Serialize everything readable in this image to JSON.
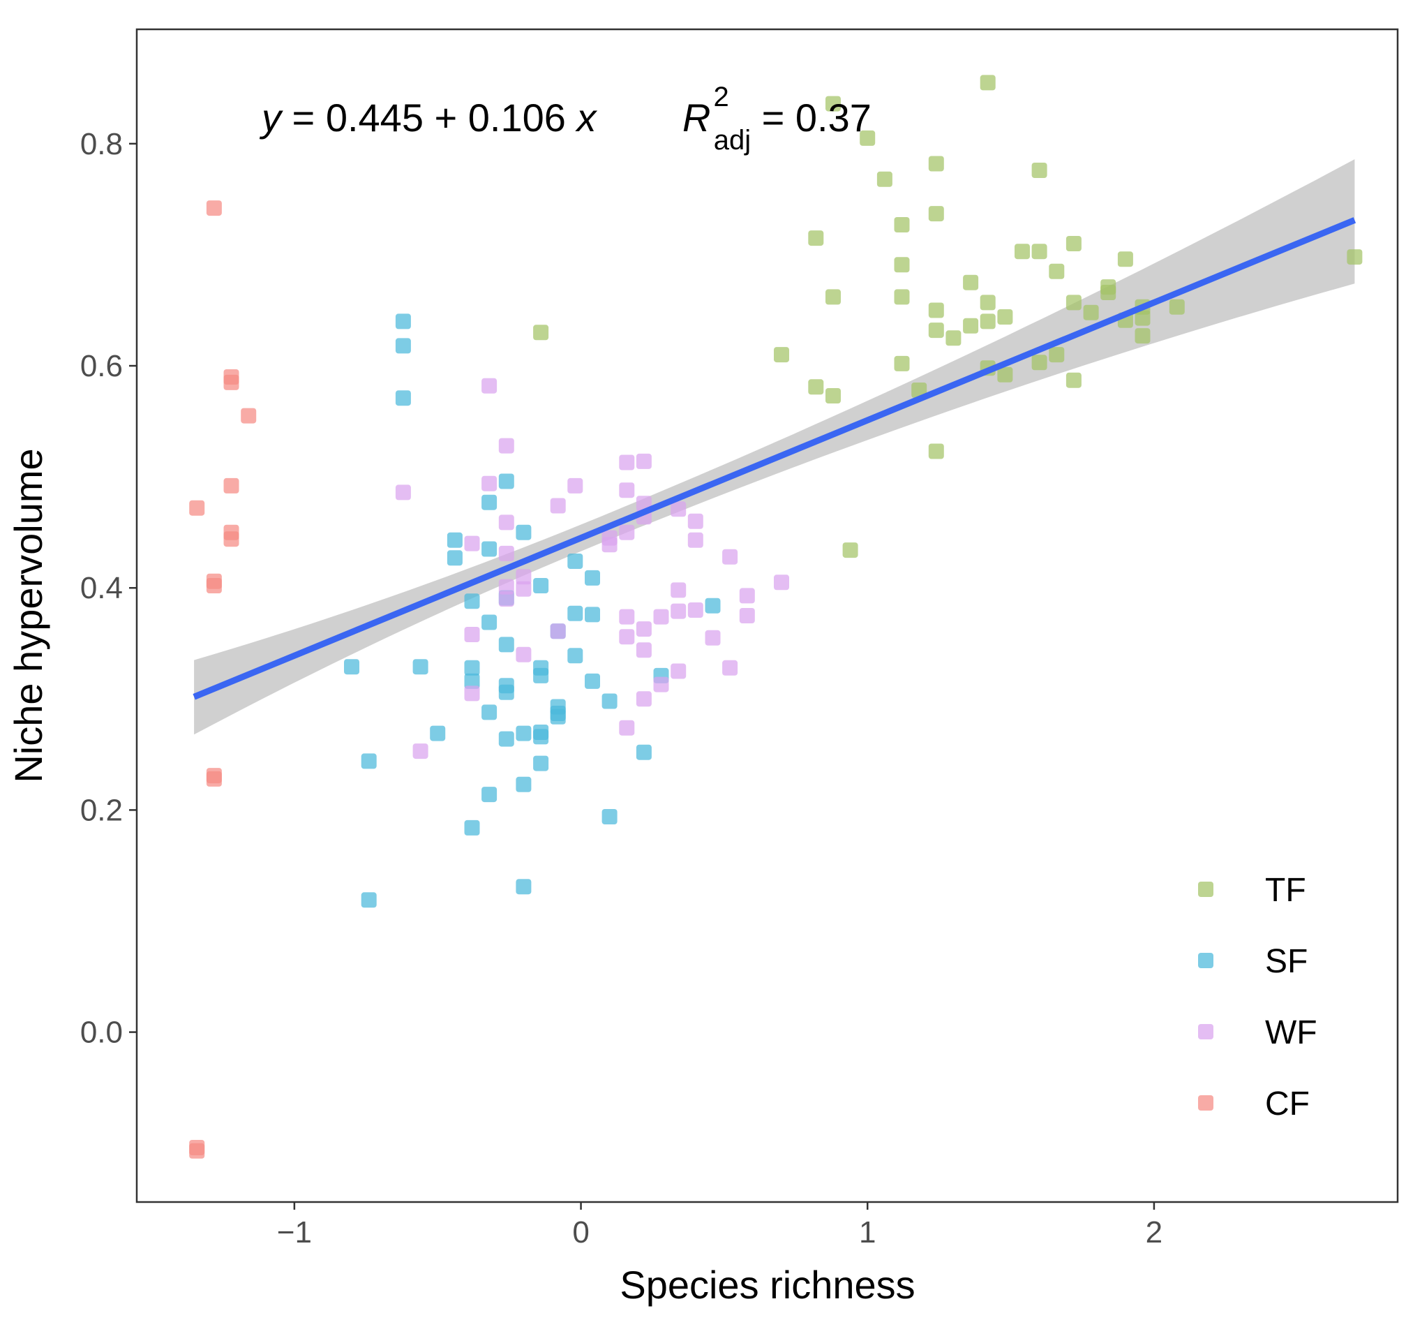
{
  "chart_data": {
    "type": "scatter",
    "title": "",
    "xlabel": "Species richness",
    "ylabel": "Niche hypervolume",
    "xlim": [
      -1.55,
      2.85
    ],
    "ylim": [
      -0.153,
      0.903
    ],
    "x_ticks": [
      -1,
      0,
      1,
      2
    ],
    "x_tick_labels": [
      "−1",
      "0",
      "1",
      "2"
    ],
    "y_ticks": [
      0.0,
      0.2,
      0.4,
      0.6,
      0.8
    ],
    "y_tick_labels": [
      "0.0",
      "0.2",
      "0.4",
      "0.6",
      "0.8"
    ],
    "grid": false,
    "legend_position": "bottom-right",
    "annotation": {
      "y": "y",
      "eq_body": " = 0.445 + 0.106 ",
      "x": "x",
      "r": "R",
      "r_sup": "2",
      "r_sub": "adj",
      "r_value": " = 0.37"
    },
    "regression": {
      "intercept": 0.445,
      "slope": 0.106,
      "r2_adj": 0.37,
      "x_range": [
        -1.35,
        2.7
      ],
      "ci_lower_ends": [
        0.268,
        0.674
      ],
      "ci_upper_ends": [
        0.335,
        0.786
      ],
      "ci_min_half_width": 0.012,
      "ci_center_x": 0.05,
      "line_color": "#3a66f2",
      "ci_color": "#c8c8c8"
    },
    "series": [
      {
        "name": "TF",
        "color": "#a3c466",
        "points": [
          [
            0.88,
            0.836
          ],
          [
            1.42,
            0.855
          ],
          [
            1.0,
            0.805
          ],
          [
            1.24,
            0.782
          ],
          [
            1.06,
            0.768
          ],
          [
            1.6,
            0.776
          ],
          [
            1.24,
            0.737
          ],
          [
            1.12,
            0.727
          ],
          [
            0.82,
            0.715
          ],
          [
            1.72,
            0.71
          ],
          [
            1.54,
            0.703
          ],
          [
            1.6,
            0.703
          ],
          [
            1.12,
            0.691
          ],
          [
            1.66,
            0.685
          ],
          [
            1.9,
            0.696
          ],
          [
            2.7,
            0.698
          ],
          [
            0.88,
            0.662
          ],
          [
            1.12,
            0.662
          ],
          [
            1.36,
            0.675
          ],
          [
            1.42,
            0.657
          ],
          [
            1.84,
            0.671
          ],
          [
            1.84,
            0.666
          ],
          [
            1.72,
            0.657
          ],
          [
            1.24,
            0.65
          ],
          [
            1.78,
            0.648
          ],
          [
            1.96,
            0.653
          ],
          [
            2.08,
            0.653
          ],
          [
            1.96,
            0.643
          ],
          [
            1.48,
            0.644
          ],
          [
            1.42,
            0.64
          ],
          [
            1.36,
            0.636
          ],
          [
            1.9,
            0.641
          ],
          [
            1.24,
            0.632
          ],
          [
            1.3,
            0.625
          ],
          [
            1.96,
            0.627
          ],
          [
            -0.14,
            0.63
          ],
          [
            0.7,
            0.61
          ],
          [
            1.66,
            0.61
          ],
          [
            1.12,
            0.602
          ],
          [
            1.6,
            0.603
          ],
          [
            1.42,
            0.598
          ],
          [
            1.48,
            0.592
          ],
          [
            1.72,
            0.587
          ],
          [
            0.82,
            0.581
          ],
          [
            1.18,
            0.578
          ],
          [
            0.88,
            0.573
          ],
          [
            1.24,
            0.523
          ],
          [
            0.94,
            0.434
          ]
        ]
      },
      {
        "name": "SF",
        "color": "#4bb9db",
        "points": [
          [
            -0.62,
            0.64
          ],
          [
            -0.62,
            0.618
          ],
          [
            -0.62,
            0.571
          ],
          [
            -0.26,
            0.496
          ],
          [
            -0.32,
            0.477
          ],
          [
            -0.2,
            0.45
          ],
          [
            -0.44,
            0.443
          ],
          [
            -0.32,
            0.435
          ],
          [
            -0.44,
            0.427
          ],
          [
            -0.02,
            0.424
          ],
          [
            0.04,
            0.409
          ],
          [
            -0.14,
            0.402
          ],
          [
            -0.26,
            0.391
          ],
          [
            -0.38,
            0.388
          ],
          [
            0.46,
            0.384
          ],
          [
            -0.02,
            0.377
          ],
          [
            0.04,
            0.376
          ],
          [
            -0.32,
            0.369
          ],
          [
            -0.08,
            0.361
          ],
          [
            -0.26,
            0.349
          ],
          [
            -0.02,
            0.339
          ],
          [
            -0.8,
            0.329
          ],
          [
            -0.56,
            0.329
          ],
          [
            -0.38,
            0.328
          ],
          [
            -0.14,
            0.328
          ],
          [
            -0.14,
            0.321
          ],
          [
            0.28,
            0.321
          ],
          [
            -0.38,
            0.316
          ],
          [
            0.04,
            0.316
          ],
          [
            -0.26,
            0.312
          ],
          [
            -0.26,
            0.306
          ],
          [
            0.1,
            0.298
          ],
          [
            -0.08,
            0.293
          ],
          [
            -0.08,
            0.287
          ],
          [
            -0.32,
            0.288
          ],
          [
            -0.08,
            0.284
          ],
          [
            -0.5,
            0.269
          ],
          [
            -0.2,
            0.269
          ],
          [
            -0.14,
            0.27
          ],
          [
            -0.14,
            0.266
          ],
          [
            -0.26,
            0.264
          ],
          [
            0.22,
            0.252
          ],
          [
            -0.74,
            0.244
          ],
          [
            -0.14,
            0.242
          ],
          [
            -0.2,
            0.223
          ],
          [
            -0.32,
            0.214
          ],
          [
            0.1,
            0.194
          ],
          [
            -0.38,
            0.184
          ],
          [
            -0.2,
            0.131
          ],
          [
            -0.74,
            0.119
          ]
        ]
      },
      {
        "name": "WF",
        "color": "#d9a3ef",
        "points": [
          [
            -0.32,
            0.582
          ],
          [
            -0.26,
            0.528
          ],
          [
            0.16,
            0.513
          ],
          [
            0.22,
            0.514
          ],
          [
            -0.32,
            0.494
          ],
          [
            -0.02,
            0.492
          ],
          [
            0.16,
            0.488
          ],
          [
            -0.62,
            0.486
          ],
          [
            0.22,
            0.476
          ],
          [
            -0.08,
            0.474
          ],
          [
            0.34,
            0.471
          ],
          [
            0.22,
            0.464
          ],
          [
            -0.26,
            0.459
          ],
          [
            0.4,
            0.46
          ],
          [
            0.16,
            0.45
          ],
          [
            0.1,
            0.445
          ],
          [
            0.4,
            0.443
          ],
          [
            -0.38,
            0.44
          ],
          [
            0.1,
            0.439
          ],
          [
            -0.26,
            0.431
          ],
          [
            0.52,
            0.428
          ],
          [
            -0.2,
            0.41
          ],
          [
            0.7,
            0.405
          ],
          [
            -0.26,
            0.401
          ],
          [
            -0.2,
            0.399
          ],
          [
            0.34,
            0.398
          ],
          [
            0.58,
            0.393
          ],
          [
            -0.26,
            0.39
          ],
          [
            0.4,
            0.38
          ],
          [
            0.34,
            0.379
          ],
          [
            0.58,
            0.375
          ],
          [
            0.16,
            0.374
          ],
          [
            0.28,
            0.374
          ],
          [
            0.22,
            0.363
          ],
          [
            -0.08,
            0.361
          ],
          [
            -0.38,
            0.358
          ],
          [
            0.16,
            0.356
          ],
          [
            0.46,
            0.355
          ],
          [
            0.22,
            0.344
          ],
          [
            -0.2,
            0.34
          ],
          [
            0.52,
            0.328
          ],
          [
            0.34,
            0.325
          ],
          [
            0.28,
            0.313
          ],
          [
            -0.38,
            0.305
          ],
          [
            0.22,
            0.3
          ],
          [
            0.16,
            0.274
          ],
          [
            -0.56,
            0.253
          ]
        ]
      },
      {
        "name": "CF",
        "color": "#f58b84",
        "points": [
          [
            -1.28,
            0.742
          ],
          [
            -1.22,
            0.59
          ],
          [
            -1.22,
            0.585
          ],
          [
            -1.16,
            0.555
          ],
          [
            -1.22,
            0.492
          ],
          [
            -1.34,
            0.472
          ],
          [
            -1.22,
            0.45
          ],
          [
            -1.22,
            0.444
          ],
          [
            -1.28,
            0.406
          ],
          [
            -1.28,
            0.402
          ],
          [
            -1.28,
            0.231
          ],
          [
            -1.28,
            0.228
          ],
          [
            -1.34,
            -0.104
          ],
          [
            -1.34,
            -0.107
          ]
        ]
      }
    ]
  }
}
